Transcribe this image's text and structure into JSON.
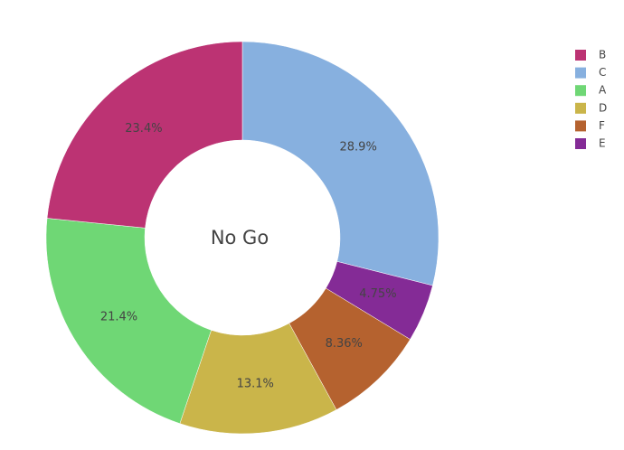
{
  "chart_data": {
    "type": "pie",
    "annotation": "No Go",
    "categories": [
      "C",
      "E",
      "F",
      "D",
      "A",
      "B"
    ],
    "values": [
      28.9,
      4.75,
      8.36,
      13.1,
      21.4,
      23.4
    ],
    "value_labels": [
      "28.9%",
      "4.75%",
      "8.36%",
      "13.1%",
      "21.4%",
      "23.4%"
    ],
    "colors": [
      "#87b0df",
      "#842b96",
      "#b5622f",
      "#cab54a",
      "#6fd775",
      "#bc3373"
    ],
    "legend": [
      "B",
      "C",
      "A",
      "D",
      "F",
      "E"
    ],
    "legend_position": "top-right"
  }
}
